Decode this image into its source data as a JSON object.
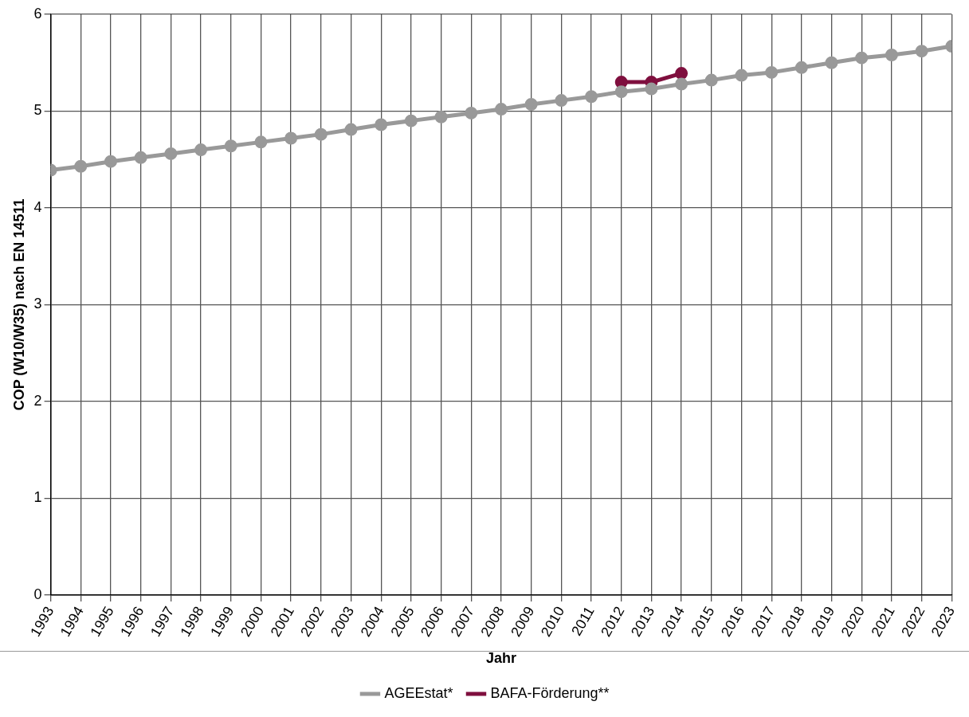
{
  "chart_data": {
    "type": "line",
    "xlabel": "Jahr",
    "ylabel": "COP (W10/W35) nach EN 14511",
    "x": [
      1993,
      1994,
      1995,
      1996,
      1997,
      1998,
      1999,
      2000,
      2001,
      2002,
      2003,
      2004,
      2005,
      2006,
      2007,
      2008,
      2009,
      2010,
      2011,
      2012,
      2013,
      2014,
      2015,
      2016,
      2017,
      2018,
      2019,
      2020,
      2021,
      2022,
      2023
    ],
    "series": [
      {
        "name": "AGEEstat*",
        "color": "#999999",
        "values": [
          4.39,
          4.43,
          4.48,
          4.52,
          4.56,
          4.6,
          4.64,
          4.68,
          4.72,
          4.76,
          4.81,
          4.86,
          4.9,
          4.94,
          4.98,
          5.02,
          5.07,
          5.11,
          5.15,
          5.2,
          5.23,
          5.28,
          5.32,
          5.37,
          5.4,
          5.45,
          5.5,
          5.55,
          5.58,
          5.62,
          5.67
        ]
      },
      {
        "name": "BAFA-Förderung**",
        "color": "#7f0f3e",
        "x": [
          2012,
          2013,
          2014
        ],
        "values": [
          5.3,
          5.3,
          5.39
        ]
      }
    ],
    "xlim": [
      1993,
      2023
    ],
    "xticks": [
      1993,
      1994,
      1995,
      1996,
      1997,
      1998,
      1999,
      2000,
      2001,
      2002,
      2003,
      2004,
      2005,
      2006,
      2007,
      2008,
      2009,
      2010,
      2011,
      2012,
      2013,
      2014,
      2015,
      2016,
      2017,
      2018,
      2019,
      2020,
      2021,
      2022,
      2023
    ],
    "ylim": [
      0,
      6
    ],
    "yticks": [
      0,
      1,
      2,
      3,
      4,
      5,
      6
    ],
    "grid": true,
    "legend": "bottom",
    "marker": "circle",
    "line_style": "solid"
  }
}
